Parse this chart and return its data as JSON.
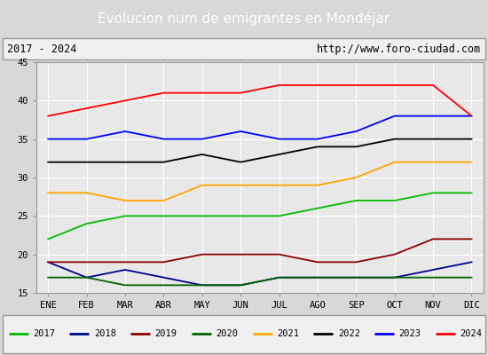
{
  "title": "Evolucion num de emigrantes en Mondéjar",
  "subtitle_left": "2017 - 2024",
  "subtitle_right": "http://www.foro-ciudad.com",
  "months": [
    "ENE",
    "FEB",
    "MAR",
    "ABR",
    "MAY",
    "JUN",
    "JUL",
    "AGO",
    "SEP",
    "OCT",
    "NOV",
    "DIC"
  ],
  "ylim": [
    15,
    45
  ],
  "yticks": [
    15,
    20,
    25,
    30,
    35,
    40,
    45
  ],
  "series": {
    "2017": {
      "color": "#00bb00",
      "data": [
        22,
        24,
        25,
        25,
        25,
        25,
        25,
        26,
        27,
        27,
        28,
        28
      ]
    },
    "2018": {
      "color": "#00008b",
      "data": [
        19,
        17,
        18,
        17,
        16,
        16,
        17,
        17,
        17,
        17,
        18,
        19
      ]
    },
    "2019": {
      "color": "#8b0000",
      "data": [
        19,
        19,
        19,
        19,
        20,
        20,
        20,
        19,
        19,
        20,
        22,
        22
      ]
    },
    "2020": {
      "color": "#006400",
      "data": [
        17,
        17,
        16,
        16,
        16,
        16,
        17,
        17,
        17,
        17,
        17,
        17
      ]
    },
    "2021": {
      "color": "#ffa500",
      "data": [
        28,
        28,
        27,
        27,
        29,
        29,
        29,
        29,
        30,
        32,
        32,
        32
      ]
    },
    "2022": {
      "color": "#000000",
      "data": [
        32,
        32,
        32,
        32,
        33,
        32,
        33,
        34,
        34,
        35,
        35,
        35
      ]
    },
    "2023": {
      "color": "#0000ff",
      "data": [
        35,
        35,
        36,
        35,
        35,
        36,
        35,
        35,
        36,
        38,
        38,
        38
      ]
    },
    "2024": {
      "color": "#ff0000",
      "data": [
        38,
        39,
        40,
        41,
        41,
        41,
        42,
        42,
        42,
        42,
        42,
        38
      ]
    }
  },
  "legend_order": [
    "2017",
    "2018",
    "2019",
    "2020",
    "2021",
    "2022",
    "2023",
    "2024"
  ],
  "title_bg_color": "#5588dd",
  "title_text_color": "#ffffff",
  "plot_bg_color": "#e8e8e8",
  "grid_color": "#ffffff",
  "outer_bg_color": "#d8d8d8",
  "subtitle_bg_color": "#f0f0f0",
  "legend_bg_color": "#f0f0f0"
}
